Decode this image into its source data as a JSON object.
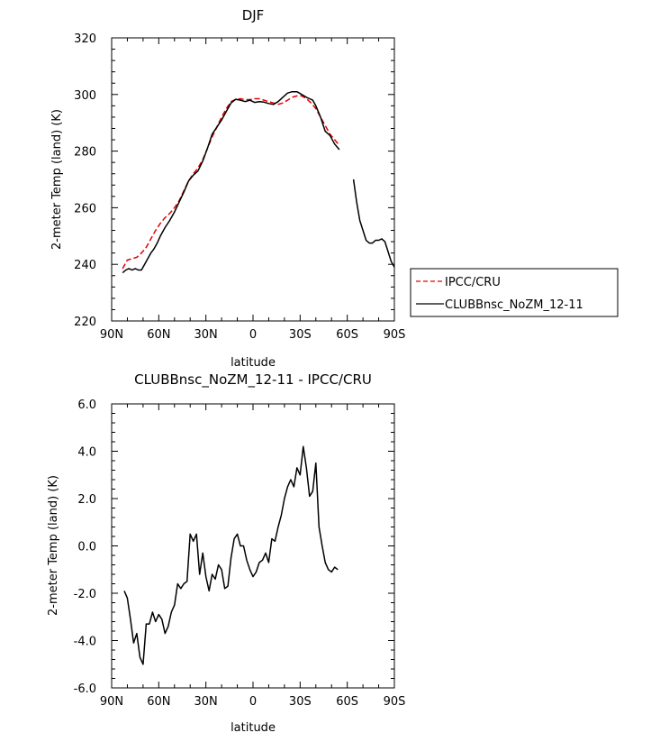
{
  "chart_data": [
    {
      "type": "line",
      "title": "DJF",
      "xlabel": "latitude",
      "ylabel": "2-meter Temp (land) (K)",
      "xlim": [
        90,
        -90
      ],
      "ylim": [
        220,
        320
      ],
      "x_ticks": [
        90,
        60,
        30,
        0,
        -30,
        -60,
        -90
      ],
      "x_tick_labels": [
        "90N",
        "60N",
        "30N",
        "0",
        "30S",
        "60S",
        "90S"
      ],
      "y_ticks": [
        220,
        240,
        260,
        280,
        300,
        320
      ],
      "y_tick_labels": [
        "220",
        "240",
        "260",
        "280",
        "300",
        "320"
      ],
      "legend": {
        "placement": "right"
      },
      "series": [
        {
          "name": "IPCC/CRU",
          "color": "#e60000",
          "style": "dashed",
          "x": [
            83,
            80,
            77,
            74,
            71,
            68,
            65,
            62,
            59,
            56,
            53,
            50,
            47,
            44,
            41,
            38,
            35,
            32,
            29,
            26,
            23,
            20,
            17,
            14,
            11,
            8,
            5,
            2,
            -1,
            -4,
            -7,
            -10,
            -13,
            -16,
            -19,
            -22,
            -25,
            -28,
            -31,
            -34,
            -37,
            -40,
            -43,
            -46,
            -49,
            -52,
            -55
          ],
          "y": [
            238.5,
            241.5,
            242,
            242.5,
            244,
            246,
            249,
            252,
            254.5,
            256.5,
            258,
            260,
            262.5,
            266,
            269.5,
            272,
            274,
            277,
            281,
            285,
            288.5,
            292,
            295,
            297.5,
            298.3,
            298.5,
            298.2,
            298.2,
            298.5,
            298.5,
            298,
            297.5,
            297,
            296.5,
            297,
            298,
            299,
            299.5,
            299.5,
            298.5,
            297,
            295,
            292,
            289,
            286,
            284,
            282
          ]
        },
        {
          "name": "CLUBBnsc_NoZM_12-11",
          "color": "#000000",
          "style": "solid",
          "segments": [
            {
              "x": [
                83,
                81,
                79,
                77,
                75,
                73,
                71,
                69,
                67,
                65,
                63,
                61,
                59,
                56,
                53,
                50,
                47,
                44,
                41,
                38,
                35,
                32,
                29,
                26,
                23,
                20,
                17,
                14,
                11,
                8,
                5,
                2,
                -1,
                -4,
                -7,
                -10,
                -13,
                -16,
                -19,
                -22,
                -25,
                -28,
                -31,
                -34,
                -36,
                -38,
                -40,
                -43,
                -46,
                -49,
                -52,
                -55
              ],
              "y": [
                237,
                238,
                238.5,
                238,
                238.5,
                238,
                238,
                240,
                242,
                244,
                245.5,
                247.5,
                250,
                253,
                255.5,
                258.5,
                262,
                265.5,
                269.5,
                271.5,
                273,
                276.5,
                281,
                286,
                288.5,
                291,
                294,
                297,
                298.3,
                298,
                297.5,
                298,
                297.2,
                297.5,
                297.3,
                296.8,
                296.5,
                297.5,
                299,
                300.5,
                301,
                301,
                300,
                299,
                298.5,
                298,
                296,
                292,
                287,
                285.5,
                282.5,
                280.5
              ]
            },
            {
              "x": [
                -64,
                -66,
                -68,
                -70,
                -72,
                -74,
                -76,
                -78,
                -80,
                -82,
                -84,
                -86,
                -88,
                -90
              ],
              "y": [
                270,
                262,
                255.5,
                252,
                248.5,
                247.5,
                247.5,
                248.5,
                248.5,
                249,
                248,
                244.5,
                241,
                239
              ]
            }
          ]
        }
      ]
    },
    {
      "type": "line",
      "title": "CLUBBnsc_NoZM_12-11 - IPCC/CRU",
      "xlabel": "latitude",
      "ylabel": "2-meter Temp (land) (K)",
      "xlim": [
        90,
        -90
      ],
      "ylim": [
        -6.0,
        6.0
      ],
      "x_ticks": [
        90,
        60,
        30,
        0,
        -30,
        -60,
        -90
      ],
      "x_tick_labels": [
        "90N",
        "60N",
        "30N",
        "0",
        "30S",
        "60S",
        "90S"
      ],
      "y_ticks": [
        -6,
        -4,
        -2,
        0,
        2,
        4,
        6
      ],
      "y_tick_labels": [
        "-6.0",
        "-4.0",
        "-2.0",
        "0.0",
        "2.0",
        "4.0",
        "6.0"
      ],
      "series": [
        {
          "color": "#000000",
          "style": "solid",
          "x": [
            82,
            80,
            78,
            76,
            74,
            72,
            70,
            68,
            66,
            64,
            62,
            60,
            58,
            56,
            54,
            52,
            50,
            48,
            46,
            44,
            42,
            40,
            38,
            36,
            34,
            32,
            30,
            28,
            26,
            24,
            22,
            20,
            18,
            16,
            14,
            12,
            10,
            8,
            6,
            4,
            2,
            0,
            -2,
            -4,
            -6,
            -8,
            -10,
            -12,
            -14,
            -16,
            -18,
            -20,
            -22,
            -24,
            -26,
            -28,
            -30,
            -32,
            -34,
            -36,
            -38,
            -40,
            -42,
            -44,
            -46,
            -48,
            -50,
            -52,
            -54
          ],
          "y": [
            -1.9,
            -2.2,
            -3.1,
            -4.1,
            -3.7,
            -4.7,
            -5.0,
            -3.3,
            -3.3,
            -2.8,
            -3.2,
            -2.9,
            -3.1,
            -3.7,
            -3.4,
            -2.8,
            -2.5,
            -1.6,
            -1.8,
            -1.6,
            -1.5,
            0.5,
            0.2,
            0.5,
            -1.2,
            -0.3,
            -1.3,
            -1.9,
            -1.2,
            -1.4,
            -0.8,
            -1.0,
            -1.8,
            -1.7,
            -0.5,
            0.3,
            0.5,
            0.0,
            0.0,
            -0.6,
            -1.0,
            -1.3,
            -1.1,
            -0.7,
            -0.6,
            -0.3,
            -0.7,
            0.3,
            0.2,
            0.8,
            1.3,
            2.0,
            2.5,
            2.8,
            2.5,
            3.3,
            3.0,
            4.2,
            3.3,
            2.1,
            2.3,
            3.5,
            0.8,
            0.0,
            -0.7,
            -1.0,
            -1.1,
            -0.9,
            -1.0
          ]
        }
      ]
    }
  ]
}
